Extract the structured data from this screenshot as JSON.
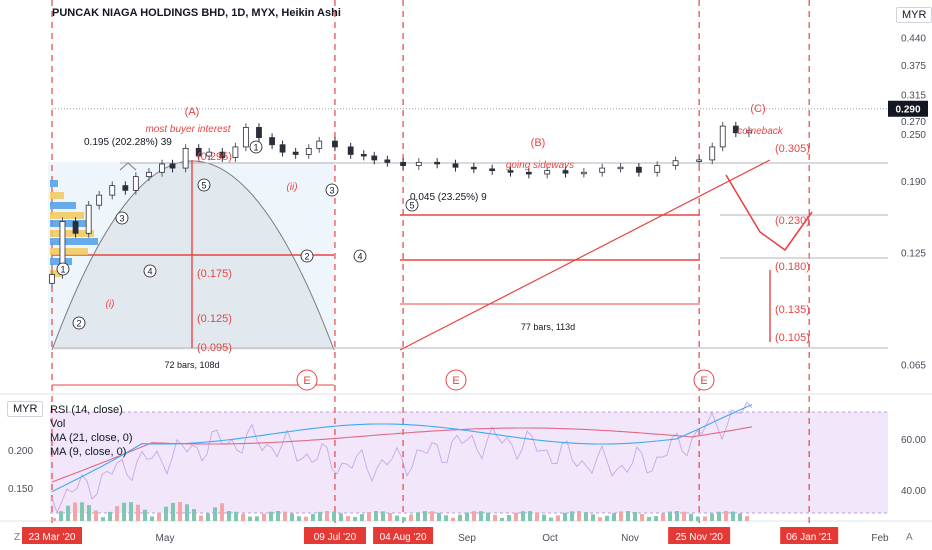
{
  "title": "PUNCAK NIAGA HOLDINGS BHD, 1D, MYX, Heikin Ashi",
  "currency": "MYR",
  "current_price": "0.290",
  "rsi_panel": {
    "currency": "MYR",
    "legend": [
      "RSI (14, close)",
      "Vol",
      "MA (21, close, 0)",
      "MA (9, close, 0)"
    ],
    "left_ticks": [
      "0.200",
      "0.150"
    ],
    "right_ticks": [
      "60.00",
      "40.00"
    ]
  },
  "corner_labels": {
    "left": "Z",
    "right": "A"
  },
  "chart_data": {
    "type": "candlestick",
    "title": "PUNCAK NIAGA HOLDINGS BHD, 1D, MYX, Heikin Ashi",
    "y_scale": "log",
    "ylim": [
      0.058,
      0.465
    ],
    "y_ticks": [
      "0.440",
      "0.375",
      "0.315",
      "0.250",
      "0.190",
      "0.125",
      "0.065"
    ],
    "x_ticks": [
      "May",
      "Sep",
      "Oct",
      "Nov",
      "Feb"
    ],
    "x_highlighted": [
      "23 Mar '20",
      "09 Jul '20",
      "04 Aug '20",
      "25 Nov '20",
      "06 Jan '21"
    ],
    "price_label": "0.290",
    "secondary_price_label": "0.270",
    "series": [
      {
        "name": "price",
        "dates": [
          "2020-03-23",
          "2020-03-27",
          "2020-04-01",
          "2020-04-06",
          "2020-04-10",
          "2020-04-15",
          "2020-04-20",
          "2020-04-24",
          "2020-04-29",
          "2020-05-04",
          "2020-05-08",
          "2020-05-13",
          "2020-05-18",
          "2020-05-22",
          "2020-05-27",
          "2020-06-01",
          "2020-06-05",
          "2020-06-10",
          "2020-06-15",
          "2020-06-19",
          "2020-06-24",
          "2020-06-29",
          "2020-07-03",
          "2020-07-09",
          "2020-07-15",
          "2020-07-20",
          "2020-07-24",
          "2020-07-29",
          "2020-08-04",
          "2020-08-10",
          "2020-08-17",
          "2020-08-24",
          "2020-08-31",
          "2020-09-07",
          "2020-09-14",
          "2020-09-21",
          "2020-09-28",
          "2020-10-05",
          "2020-10-12",
          "2020-10-19",
          "2020-10-26",
          "2020-11-02",
          "2020-11-09",
          "2020-11-16",
          "2020-11-25",
          "2020-11-30",
          "2020-12-04",
          "2020-12-09",
          "2020-12-14"
        ],
        "close": [
          0.11,
          0.15,
          0.14,
          0.165,
          0.175,
          0.185,
          0.18,
          0.195,
          0.2,
          0.21,
          0.205,
          0.23,
          0.22,
          0.225,
          0.218,
          0.232,
          0.26,
          0.245,
          0.235,
          0.225,
          0.222,
          0.23,
          0.24,
          0.232,
          0.222,
          0.22,
          0.215,
          0.212,
          0.208,
          0.212,
          0.21,
          0.206,
          0.204,
          0.202,
          0.2,
          0.198,
          0.202,
          0.199,
          0.2,
          0.205,
          0.206,
          0.2,
          0.208,
          0.214,
          0.215,
          0.232,
          0.262,
          0.252,
          0.255
        ]
      }
    ],
    "annotations": {
      "waves": [
        "(A)",
        "(B)",
        "(C)"
      ],
      "notes": [
        "most buyer interest",
        "going sideways",
        "comeback"
      ],
      "labels": [
        "0.195 (202.28%) 39",
        "0.045 (23.25%) 9",
        "72 bars, 108d",
        "77 bars, 113d"
      ],
      "levels": [
        "(0.295)",
        "(0.175)",
        "(0.125)",
        "(0.095)",
        "(0.305)",
        "(0.230)",
        "(0.180)",
        "(0.135)",
        "(0.105)"
      ],
      "wave_counts": [
        "1",
        "2",
        "3",
        "4",
        "5",
        "(i)",
        "(ii)"
      ],
      "cycle_markers": [
        "E",
        "E",
        "E"
      ]
    }
  }
}
